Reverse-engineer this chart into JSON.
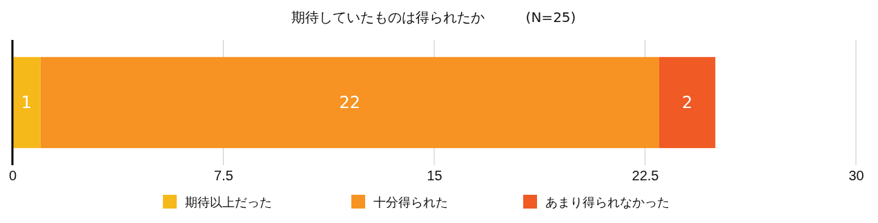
{
  "chart_data": {
    "type": "bar",
    "orientation": "horizontal",
    "stacked": true,
    "title": "期待していたものは得られたか　　　(N=25)",
    "categories": [
      null
    ],
    "series": [
      {
        "name": "期待以上だった",
        "color": "#f6b91a",
        "values": [
          1
        ]
      },
      {
        "name": "十分得られた",
        "color": "#f69322",
        "values": [
          22
        ]
      },
      {
        "name": "あまり得られなかった",
        "color": "#f05a24",
        "values": [
          2
        ]
      }
    ],
    "xlim": [
      0,
      30
    ],
    "xticks": [
      0,
      7.5,
      15,
      22.5,
      30
    ],
    "grid": "x",
    "legend": "bottom",
    "data_labels": true
  }
}
